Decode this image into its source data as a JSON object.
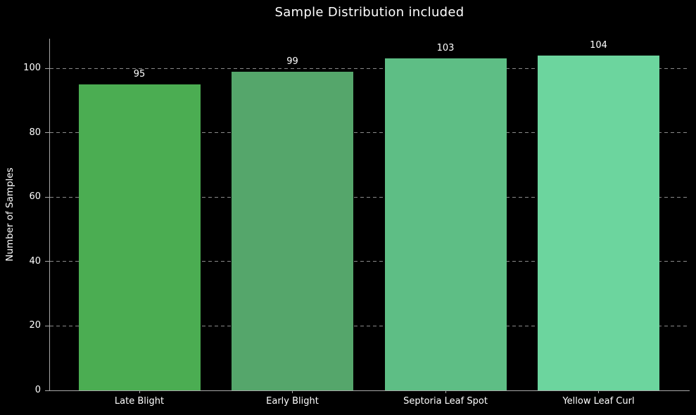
{
  "chart_data": {
    "type": "bar",
    "title": "Sample Distribution included",
    "xlabel": "",
    "ylabel": "Number of Samples",
    "categories": [
      "Late Blight",
      "Early Blight",
      "Septoria Leaf Spot",
      "Yellow Leaf Curl"
    ],
    "values": [
      95,
      99,
      103,
      104
    ],
    "bar_value_labels": [
      "95",
      "99",
      "103",
      "104"
    ],
    "yticks": [
      0,
      20,
      40,
      60,
      80,
      100
    ],
    "ylim": [
      0,
      109.2
    ],
    "grid": "horizontal-dashed",
    "legend_position": "none",
    "colors": {
      "background": "#000000",
      "text": "#ffffff",
      "grid": "#8a8a8a",
      "spine": "#a8a8a8",
      "bars": [
        "#4bad52",
        "#55a66b",
        "#5ebe85",
        "#6cd59e"
      ]
    }
  }
}
